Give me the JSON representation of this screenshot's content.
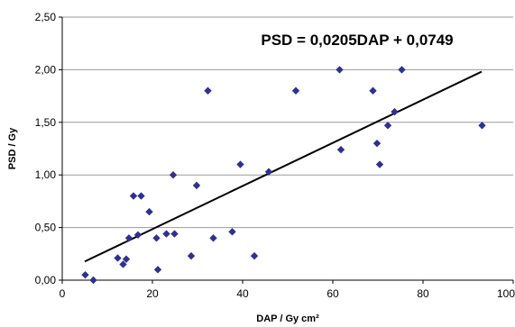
{
  "chart_data": {
    "type": "scatter",
    "title": "",
    "annotation": "PSD = 0,0205DAP + 0,0749",
    "xlabel": "DAP / Gy cm²",
    "ylabel": "PSD / Gy",
    "xlim": [
      0,
      100
    ],
    "ylim": [
      0,
      2.5
    ],
    "x_ticks": [
      0,
      20,
      40,
      60,
      80,
      100
    ],
    "x_tick_labels": [
      "0",
      "20",
      "40",
      "60",
      "80",
      "100"
    ],
    "y_ticks": [
      0,
      0.5,
      1.0,
      1.5,
      2.0,
      2.5
    ],
    "y_tick_labels": [
      "0,00",
      "0,50",
      "1,00",
      "1,50",
      "2,00",
      "2,50"
    ],
    "grid": "horizontal",
    "marker_color": "#2E3192",
    "line_color": "#000000",
    "series": [
      {
        "points": [
          [
            5.1,
            0.05
          ],
          [
            6.9,
            0.0
          ],
          [
            12.3,
            0.21
          ],
          [
            13.5,
            0.15
          ],
          [
            14.2,
            0.2
          ],
          [
            14.8,
            0.4
          ],
          [
            15.8,
            0.8
          ],
          [
            16.8,
            0.43
          ],
          [
            17.5,
            0.8
          ],
          [
            19.3,
            0.65
          ],
          [
            20.9,
            0.4
          ],
          [
            21.2,
            0.1
          ],
          [
            23.1,
            0.44
          ],
          [
            24.6,
            1.0
          ],
          [
            24.9,
            0.44
          ],
          [
            28.6,
            0.23
          ],
          [
            29.8,
            0.9
          ],
          [
            32.3,
            1.8
          ],
          [
            33.5,
            0.4
          ],
          [
            37.7,
            0.46
          ],
          [
            39.5,
            1.1
          ],
          [
            42.6,
            0.23
          ],
          [
            45.8,
            1.03
          ],
          [
            51.8,
            1.8
          ],
          [
            61.5,
            2.0
          ],
          [
            61.8,
            1.24
          ],
          [
            68.9,
            1.8
          ],
          [
            69.8,
            1.3
          ],
          [
            70.4,
            1.1
          ],
          [
            72.2,
            1.47
          ],
          [
            73.7,
            1.6
          ],
          [
            75.3,
            2.0
          ],
          [
            93.1,
            1.47
          ]
        ]
      }
    ],
    "trendline": {
      "slope": 0.0205,
      "intercept": 0.0749,
      "x_start": 5,
      "x_end": 93
    }
  }
}
